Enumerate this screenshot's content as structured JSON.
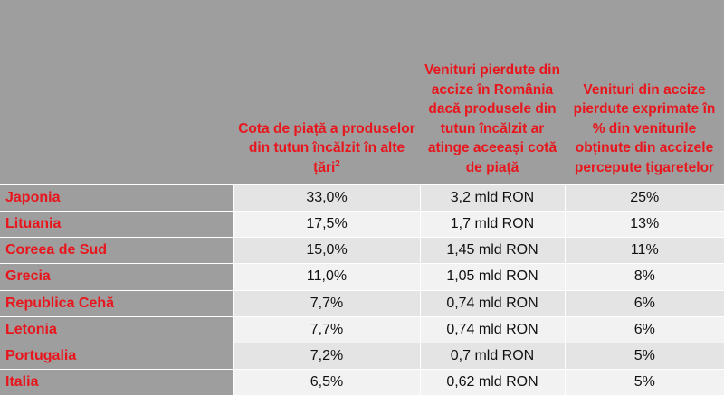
{
  "table": {
    "headers": [
      "",
      "Cota de piață a produselor din tutun încălzit în alte țări",
      "Venituri pierdute din accize în România dacă produsele din tutun încălzit ar atinge aceeași cotă de piață",
      "Venituri din accize pierdute exprimate în % din veniturile obținute din accizele percepute țigaretelor"
    ],
    "header_footnote": "2",
    "rows": [
      {
        "country": "Japonia",
        "share": "33,0%",
        "lost": "3,2 mld RON",
        "pct": "25%"
      },
      {
        "country": "Lituania",
        "share": "17,5%",
        "lost": "1,7 mld RON",
        "pct": "13%"
      },
      {
        "country": "Coreea de Sud",
        "share": "15,0%",
        "lost": "1,45 mld RON",
        "pct": "11%"
      },
      {
        "country": "Grecia",
        "share": "11,0%",
        "lost": "1,05 mld RON",
        "pct": "8%"
      },
      {
        "country": "Republica Cehă",
        "share": "7,7%",
        "lost": "0,74 mld RON",
        "pct": "6%"
      },
      {
        "country": "Letonia",
        "share": "7,7%",
        "lost": "0,74 mld RON",
        "pct": "6%"
      },
      {
        "country": "Portugalia",
        "share": "7,2%",
        "lost": "0,7 mld RON",
        "pct": "5%"
      },
      {
        "country": "Italia",
        "share": "6,5%",
        "lost": "0,62 mld RON",
        "pct": "5%"
      }
    ]
  },
  "colors": {
    "header_bg": "#9e9e9e",
    "accent_red": "#e8161c",
    "row_shade_dark": "#e4e4e4",
    "row_shade_light": "#f2f2f2"
  }
}
